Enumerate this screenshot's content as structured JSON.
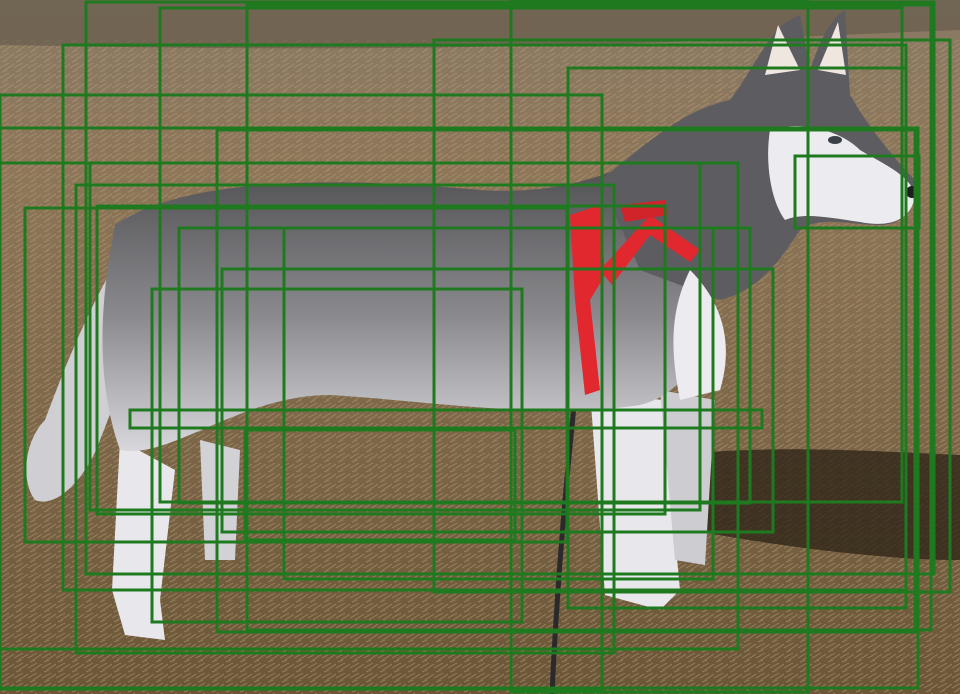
{
  "image": {
    "subject": "husky-dog",
    "harness_color": "#e0282e",
    "box_color": "#1f7a1f"
  },
  "detections": {
    "count": 30
  }
}
